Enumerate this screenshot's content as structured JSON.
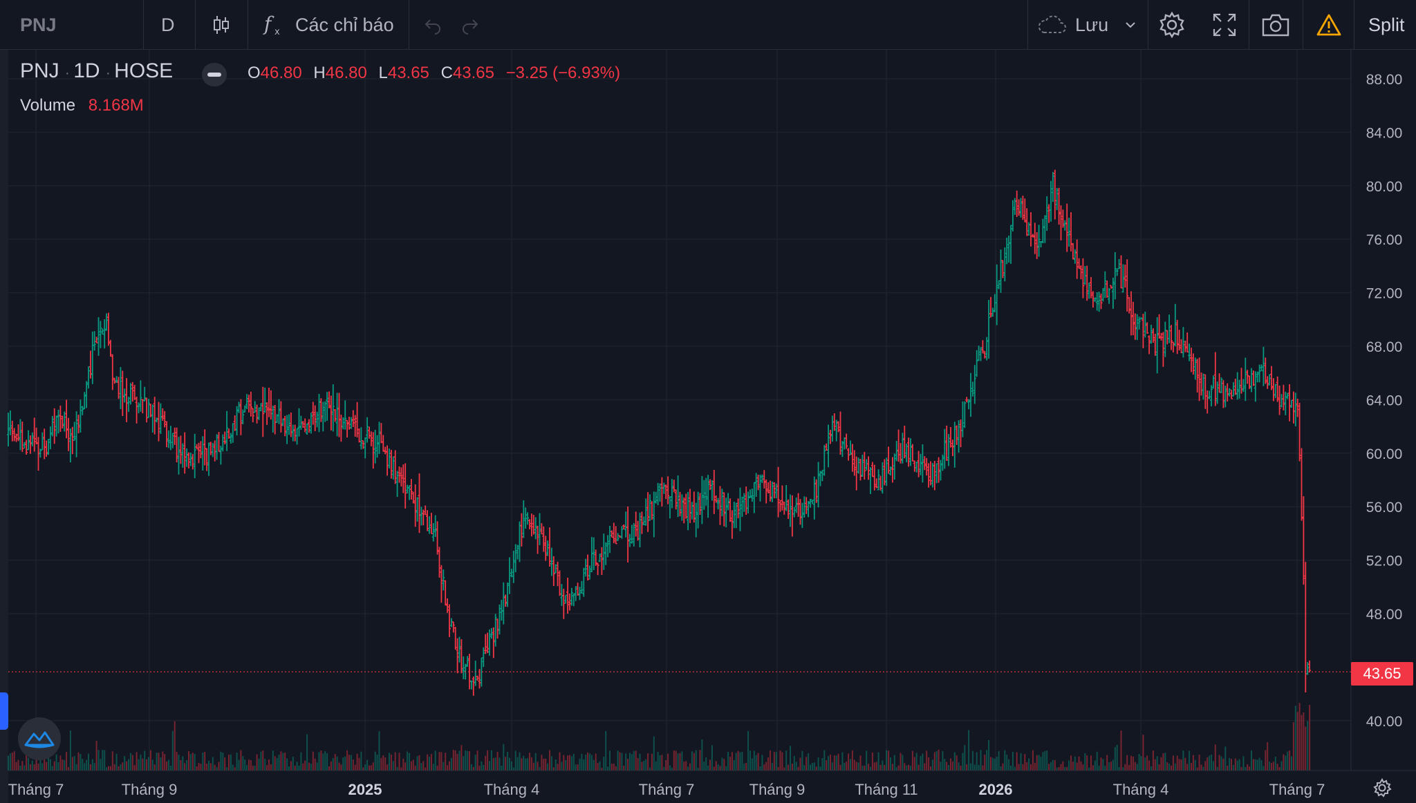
{
  "toolbar": {
    "symbol": "PNJ",
    "interval": "D",
    "indicators_label": "Các chỉ báo",
    "save_label": "Lưu",
    "split_label": "Split"
  },
  "legend": {
    "symbol": "PNJ",
    "interval": "1D",
    "exchange": "HOSE",
    "open_label": "O",
    "open": "46.80",
    "high_label": "H",
    "high": "46.80",
    "low_label": "L",
    "low": "43.65",
    "close_label": "C",
    "close": "43.65",
    "change": "−3.25 (−6.93%)",
    "volume_label": "Volume",
    "volume_value": "8.168M"
  },
  "current_price_label": "43.65",
  "colors": {
    "up": "#089981",
    "down": "#f23645",
    "background": "#131722",
    "grid": "#1e222d",
    "text": "#b2b5be"
  },
  "icons": [
    "candles-icon",
    "fx-icon",
    "undo-icon",
    "redo-icon",
    "cloud-icon",
    "chevron-down-icon",
    "gear-icon",
    "fullscreen-icon",
    "camera-icon",
    "warning-icon",
    "eye-off-icon",
    "tradingview-logo-icon",
    "settings-small-icon"
  ],
  "chart_data": {
    "type": "candlestick",
    "y_ticks": [
      "88.00",
      "84.00",
      "80.00",
      "76.00",
      "72.00",
      "68.00",
      "64.00",
      "60.00",
      "56.00",
      "52.00",
      "48.00",
      "40.00"
    ],
    "x_ticks": [
      {
        "label": "Tháng 7",
        "bold": false
      },
      {
        "label": "Tháng 9",
        "bold": false
      },
      {
        "label": "2025",
        "bold": true
      },
      {
        "label": "Tháng 4",
        "bold": false
      },
      {
        "label": "Tháng 7",
        "bold": false
      },
      {
        "label": "Tháng 9",
        "bold": false
      },
      {
        "label": "Tháng 11",
        "bold": false
      },
      {
        "label": "2026",
        "bold": true
      },
      {
        "label": "Tháng 4",
        "bold": false
      },
      {
        "label": "Tháng 7",
        "bold": false
      }
    ],
    "ylim": [
      36.3,
      91.3
    ],
    "current_price": 43.65,
    "price_path": [
      [
        0,
        61.5
      ],
      [
        18,
        60.2
      ],
      [
        25,
        63.2
      ],
      [
        33,
        61.0
      ],
      [
        44,
        68.8
      ],
      [
        49,
        69.5
      ],
      [
        53,
        65.0
      ],
      [
        67,
        63.8
      ],
      [
        77,
        62.0
      ],
      [
        90,
        59.3
      ],
      [
        103,
        60.4
      ],
      [
        117,
        63.2
      ],
      [
        135,
        63.0
      ],
      [
        144,
        61.2
      ],
      [
        159,
        64.0
      ],
      [
        170,
        62.0
      ],
      [
        185,
        60.8
      ],
      [
        199,
        57.0
      ],
      [
        213,
        53.8
      ],
      [
        220,
        47.5
      ],
      [
        227,
        44.0
      ],
      [
        234,
        43.2
      ],
      [
        245,
        47.8
      ],
      [
        257,
        55.0
      ],
      [
        268,
        53.0
      ],
      [
        279,
        48.5
      ],
      [
        292,
        52.0
      ],
      [
        306,
        54.0
      ],
      [
        313,
        53.8
      ],
      [
        327,
        57.5
      ],
      [
        341,
        55.3
      ],
      [
        350,
        57.2
      ],
      [
        361,
        55.5
      ],
      [
        376,
        57.8
      ],
      [
        390,
        55.2
      ],
      [
        401,
        56.5
      ],
      [
        412,
        62.2
      ],
      [
        421,
        59.0
      ],
      [
        436,
        58.0
      ],
      [
        447,
        60.5
      ],
      [
        461,
        58.3
      ],
      [
        474,
        62.0
      ],
      [
        487,
        68.0
      ],
      [
        503,
        79.0
      ],
      [
        513,
        75.0
      ],
      [
        521,
        80.0
      ],
      [
        533,
        74.0
      ],
      [
        543,
        71.5
      ],
      [
        554,
        73.5
      ],
      [
        562,
        70.0
      ],
      [
        572,
        68.0
      ],
      [
        582,
        69.0
      ],
      [
        596,
        65.0
      ],
      [
        612,
        64.5
      ],
      [
        626,
        66.5
      ],
      [
        634,
        64.0
      ],
      [
        643,
        63.0
      ],
      [
        645,
        56.0
      ],
      [
        647,
        44.2
      ],
      [
        649,
        43.65
      ]
    ],
    "n_bars": 650
  }
}
